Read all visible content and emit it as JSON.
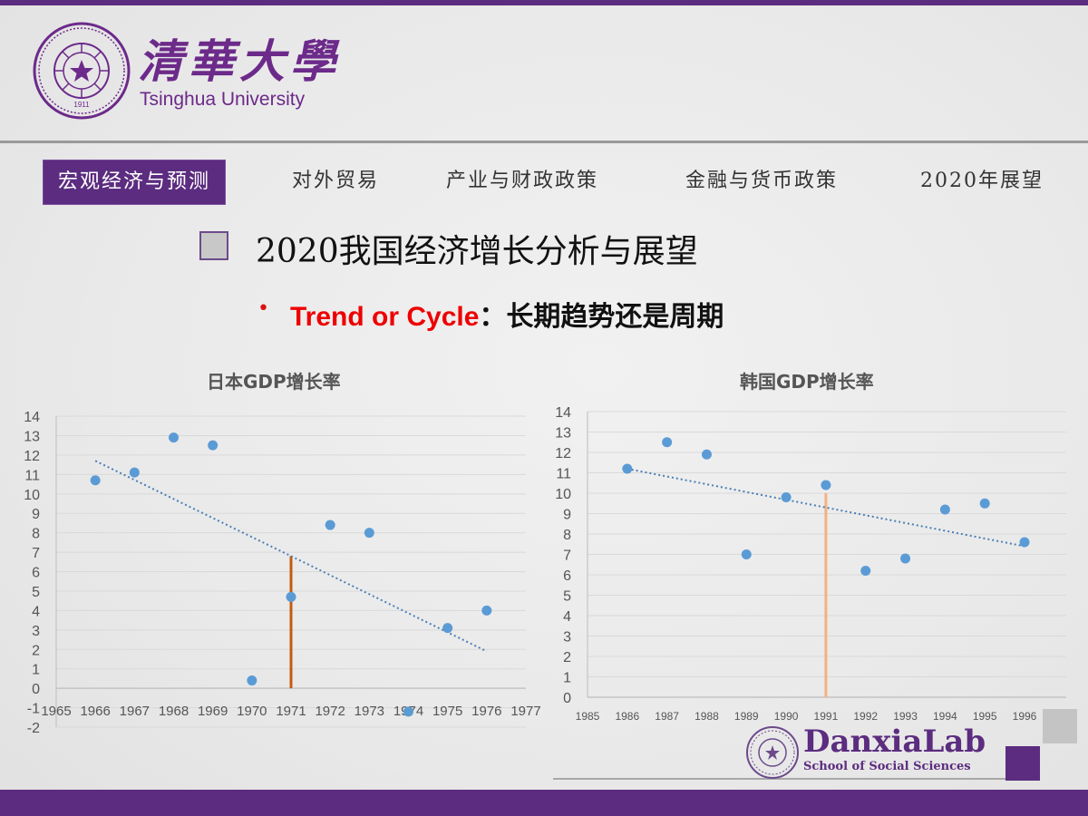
{
  "colors": {
    "brand_purple": "#5b2c7f",
    "point_blue": "#5b9bd5",
    "trend_blue": "#4a7fb5",
    "japan_marker": "#c55a11",
    "korea_marker": "#f4b183",
    "highlight_red": "#ee0000"
  },
  "header": {
    "logo_cn": "清華大學",
    "logo_en": "Tsinghua University",
    "seal_year": "1911"
  },
  "nav": {
    "items": [
      {
        "label": "宏观经济与预测",
        "active": true
      },
      {
        "label": "对外贸易",
        "active": false
      },
      {
        "label": "产业与财政政策",
        "active": false
      },
      {
        "label": "金融与货币政策",
        "active": false
      },
      {
        "label": "2020年展望",
        "active": false
      }
    ]
  },
  "slide": {
    "section_title": "2020我国经济增长分析与展望",
    "bullet": "•",
    "subtitle_en": "Trend or Cycle",
    "subtitle_cn": "：长期趋势还是周期"
  },
  "chart_data": [
    {
      "type": "scatter",
      "title": "日本GDP增长率",
      "xlabel": "",
      "ylabel": "",
      "xlim": [
        1965,
        1977
      ],
      "ylim": [
        -2,
        14
      ],
      "x_ticks": [
        1965,
        1966,
        1967,
        1968,
        1969,
        1970,
        1971,
        1972,
        1973,
        1974,
        1975,
        1976,
        1977
      ],
      "y_ticks": [
        14,
        13,
        12,
        11,
        10,
        9,
        8,
        7,
        6,
        5,
        4,
        3,
        2,
        1,
        0,
        -1,
        -2
      ],
      "grid": true,
      "x": [
        1966,
        1967,
        1968,
        1969,
        1970,
        1971,
        1972,
        1973,
        1974,
        1975,
        1976
      ],
      "values": [
        10.7,
        11.1,
        12.9,
        12.5,
        0.4,
        4.7,
        8.4,
        8.0,
        -1.2,
        3.1,
        4.0
      ],
      "trendline": {
        "type": "linear",
        "from": [
          1966,
          11.7
        ],
        "to": [
          1976,
          1.9
        ],
        "style": "dotted"
      },
      "vertical_marker": {
        "x": 1971,
        "y_top": 6.8,
        "color": "#c55a11"
      }
    },
    {
      "type": "scatter",
      "title": "韩国GDP增长率",
      "xlabel": "",
      "ylabel": "",
      "xlim": [
        1985,
        1996
      ],
      "ylim": [
        0,
        14
      ],
      "x_ticks": [
        1985,
        1986,
        1987,
        1988,
        1989,
        1990,
        1991,
        1992,
        1993,
        1994,
        1995,
        1996
      ],
      "y_ticks": [
        14,
        13,
        12,
        11,
        10,
        9,
        8,
        7,
        6,
        5,
        4,
        3,
        2,
        1,
        0
      ],
      "grid": true,
      "x": [
        1986,
        1987,
        1988,
        1989,
        1990,
        1991,
        1992,
        1993,
        1994,
        1995,
        1996
      ],
      "values": [
        11.2,
        12.5,
        11.9,
        7.0,
        9.8,
        10.4,
        6.2,
        6.8,
        9.2,
        9.5,
        7.6
      ],
      "trendline": {
        "type": "linear",
        "from": [
          1986,
          11.2
        ],
        "to": [
          1996,
          7.4
        ],
        "style": "dotted"
      },
      "vertical_marker": {
        "x": 1991,
        "y_top": 10.0,
        "color": "#f4b183"
      }
    }
  ],
  "footer": {
    "lab_name": "DanxiaLab",
    "lab_sub": "School of Social Sciences"
  }
}
